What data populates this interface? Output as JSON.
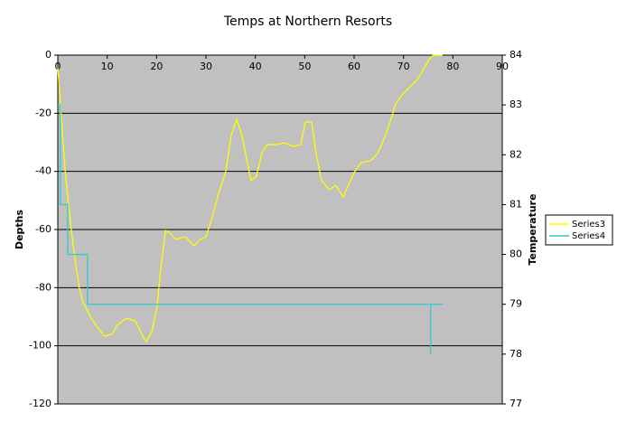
{
  "chart_data": {
    "type": "line",
    "title": "Temps at Northern Resorts",
    "ylabel": "Depths",
    "y2label": "Temperature",
    "xlim": [
      0,
      90
    ],
    "xticks": [
      0,
      10,
      20,
      30,
      40,
      50,
      60,
      70,
      80,
      90
    ],
    "ylim": [
      -120,
      0
    ],
    "yticks": [
      -120,
      -100,
      -80,
      -60,
      -40,
      -20,
      0
    ],
    "y2lim": [
      77,
      84
    ],
    "y2ticks": [
      77,
      78,
      79,
      80,
      81,
      82,
      83,
      84
    ],
    "grid": true,
    "legend": "right",
    "series": [
      {
        "name": "Series3",
        "color": "#ffff00",
        "x": [
          0,
          0.4,
          0.9,
          1.5,
          2.2,
          2.9,
          3.7,
          4.4,
          5.1,
          6.6,
          8,
          9.5,
          11,
          12,
          13.9,
          15.7,
          17.2,
          17.9,
          19,
          20.1,
          20.8,
          21.8,
          22.7,
          23.9,
          25.8,
          27.6,
          28.9,
          30,
          31.3,
          32.5,
          34,
          35.1,
          36.2,
          37.3,
          38.2,
          39.1,
          40.2,
          41.3,
          42.4,
          44.1,
          45.9,
          47.7,
          49.2,
          50.1,
          51.4,
          52.3,
          53.4,
          55,
          56.3,
          57.8,
          58.8,
          60.1,
          61.4,
          63.3,
          64.7,
          66,
          67.3,
          68.4,
          69.7,
          71.5,
          72.8,
          73.9,
          75.3,
          76,
          77.9
        ],
        "values": [
          -4.4,
          -13.7,
          -26,
          -40,
          -52,
          -62.5,
          -73,
          -80.5,
          -85,
          -90,
          -93.6,
          -96.7,
          -96,
          -93,
          -90.5,
          -91.4,
          -96.7,
          -98.5,
          -95.4,
          -86.7,
          -74.3,
          -60.3,
          -61.2,
          -63.4,
          -62.5,
          -65.6,
          -63.4,
          -62.5,
          -55.6,
          -47.9,
          -40.1,
          -27.7,
          -22.1,
          -27.7,
          -35.4,
          -43.2,
          -41.7,
          -33.9,
          -30.8,
          -30.8,
          -30.2,
          -31.4,
          -30.8,
          -23,
          -23,
          -33.9,
          -43.2,
          -46.3,
          -44.8,
          -48.8,
          -44.8,
          -40.1,
          -37,
          -36.4,
          -33.9,
          -29.2,
          -23,
          -16.8,
          -13.7,
          -10.6,
          -8.4,
          -5.3,
          -1.2,
          0,
          0
        ]
      },
      {
        "name": "Series4",
        "color": "#33cccc",
        "axis": "y2",
        "x": [
          0,
          0.5,
          0.5,
          2,
          2,
          6,
          6,
          75.5,
          75.5,
          75.5,
          78
        ],
        "values": [
          83,
          83,
          81,
          81,
          80,
          80,
          79,
          79,
          78,
          79,
          79
        ]
      }
    ]
  }
}
